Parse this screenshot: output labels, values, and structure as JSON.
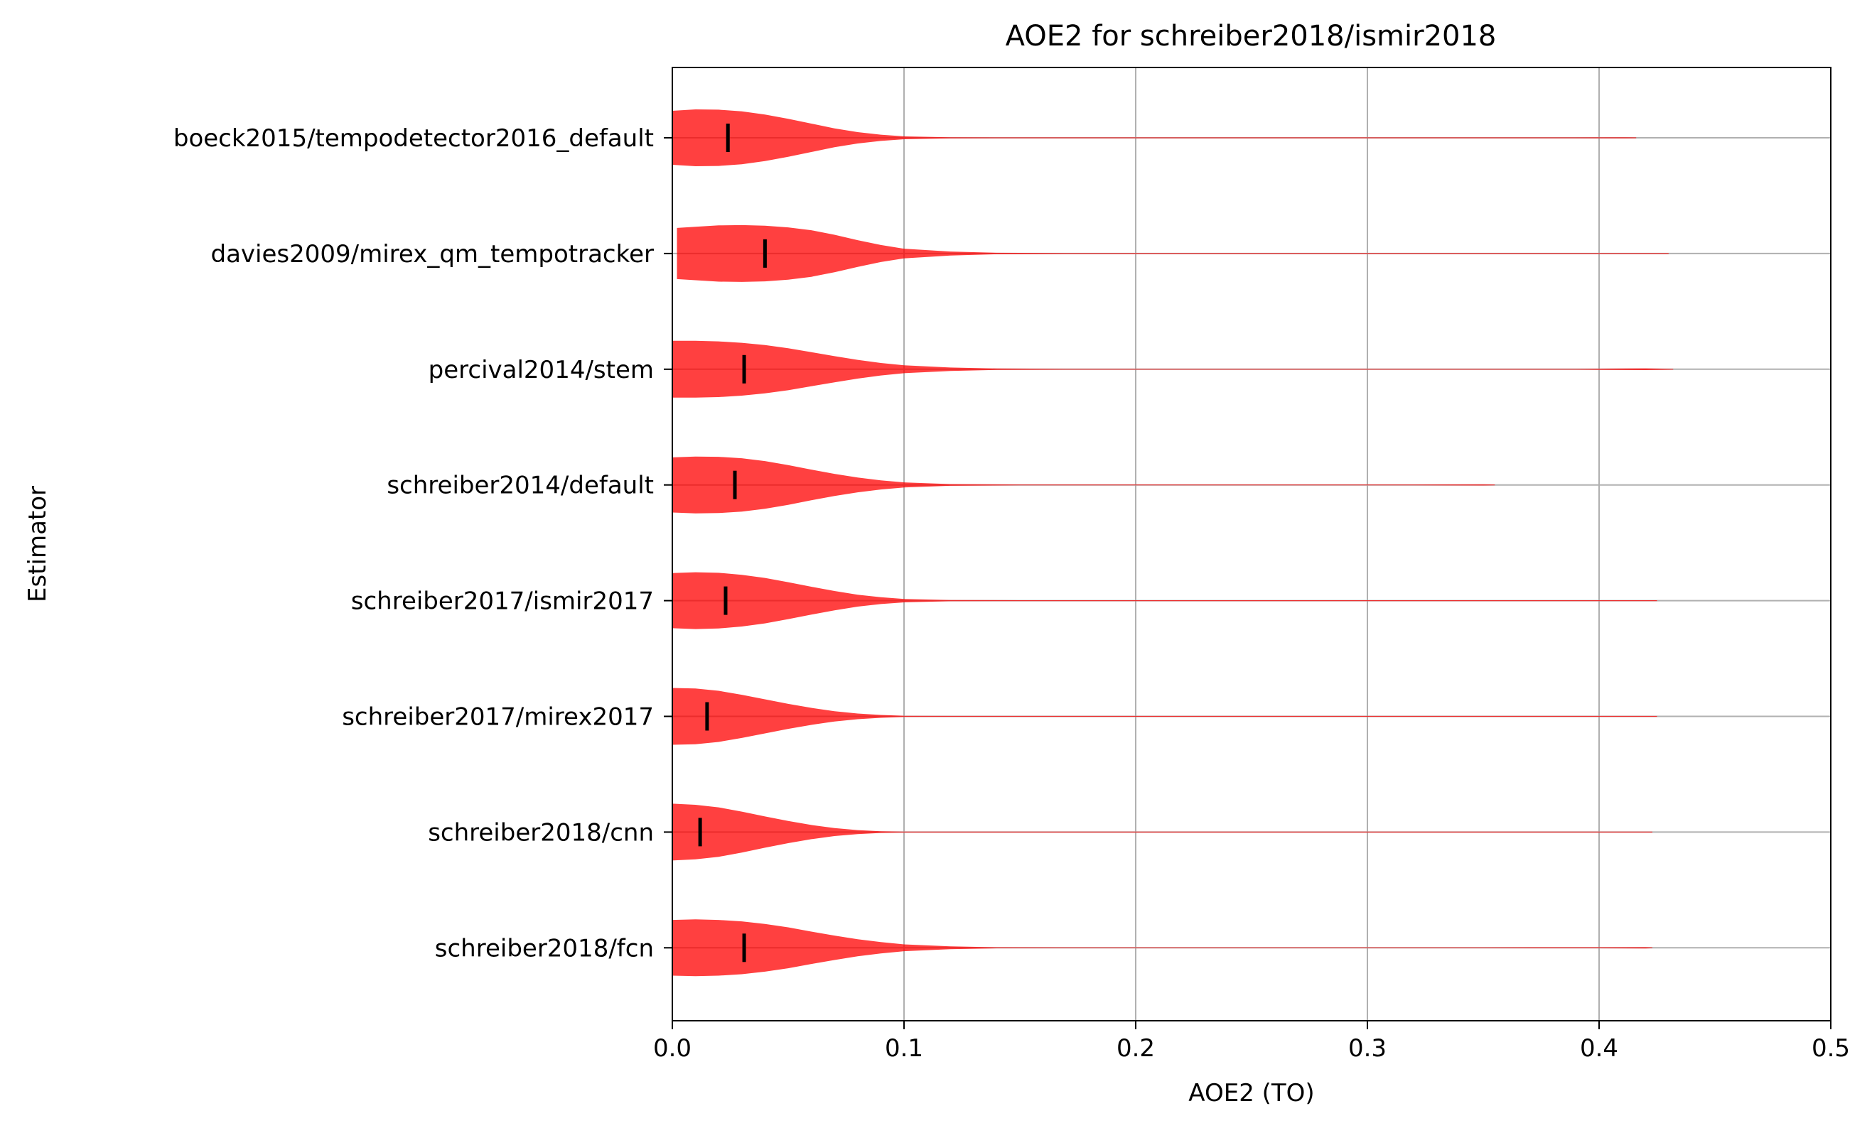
{
  "chart_data": {
    "type": "violin",
    "orientation": "horizontal",
    "title": "AOE2 for schreiber2018/ismir2018",
    "xlabel": "AOE2 (TO)",
    "ylabel": "Estimator",
    "xlim": [
      0.0,
      0.5
    ],
    "x_ticks": [
      "0.0",
      "0.1",
      "0.2",
      "0.3",
      "0.4",
      "0.5"
    ],
    "grid": true,
    "color": "#ff0000",
    "median_color": "#000000",
    "categories": [
      "boeck2015/tempodetector2016_default",
      "davies2009/mirex_qm_tempotracker",
      "percival2014/stem",
      "schreiber2014/default",
      "schreiber2017/ismir2017",
      "schreiber2017/mirex2017",
      "schreiber2018/cnn",
      "schreiber2018/fcn"
    ],
    "series": [
      {
        "min": 0.0,
        "max": 0.416,
        "median": 0.024,
        "density": [
          [
            0,
            0.95
          ],
          [
            0.01,
            1.0
          ],
          [
            0.02,
            0.99
          ],
          [
            0.03,
            0.93
          ],
          [
            0.04,
            0.82
          ],
          [
            0.05,
            0.67
          ],
          [
            0.06,
            0.5
          ],
          [
            0.07,
            0.33
          ],
          [
            0.08,
            0.2
          ],
          [
            0.09,
            0.11
          ],
          [
            0.1,
            0.05
          ],
          [
            0.12,
            0.02
          ],
          [
            0.14,
            0.008
          ],
          [
            0.2,
            0.0
          ],
          [
            0.3,
            0.0
          ],
          [
            0.37,
            0.0
          ],
          [
            0.39,
            0.015
          ],
          [
            0.41,
            0.02
          ],
          [
            0.416,
            0.0
          ]
        ]
      },
      {
        "min": 0.002,
        "max": 0.43,
        "median": 0.04,
        "density": [
          [
            0.002,
            0.9
          ],
          [
            0.01,
            0.94
          ],
          [
            0.02,
            0.99
          ],
          [
            0.03,
            1.0
          ],
          [
            0.04,
            0.98
          ],
          [
            0.05,
            0.92
          ],
          [
            0.06,
            0.82
          ],
          [
            0.07,
            0.66
          ],
          [
            0.08,
            0.47
          ],
          [
            0.09,
            0.3
          ],
          [
            0.1,
            0.17
          ],
          [
            0.12,
            0.07
          ],
          [
            0.14,
            0.025
          ],
          [
            0.17,
            0.008
          ],
          [
            0.25,
            0.0
          ],
          [
            0.3,
            0.0
          ],
          [
            0.38,
            0.0
          ],
          [
            0.42,
            0.006
          ],
          [
            0.43,
            0.0
          ]
        ]
      },
      {
        "min": 0.0,
        "max": 0.432,
        "median": 0.031,
        "density": [
          [
            0,
            1.0
          ],
          [
            0.01,
            1.0
          ],
          [
            0.02,
            0.98
          ],
          [
            0.03,
            0.93
          ],
          [
            0.04,
            0.85
          ],
          [
            0.05,
            0.74
          ],
          [
            0.06,
            0.6
          ],
          [
            0.07,
            0.46
          ],
          [
            0.08,
            0.33
          ],
          [
            0.09,
            0.22
          ],
          [
            0.1,
            0.14
          ],
          [
            0.12,
            0.06
          ],
          [
            0.14,
            0.025
          ],
          [
            0.17,
            0.008
          ],
          [
            0.25,
            0.0
          ],
          [
            0.3,
            0.0
          ],
          [
            0.35,
            0.0
          ],
          [
            0.39,
            0.012
          ],
          [
            0.42,
            0.03
          ],
          [
            0.432,
            0.0
          ]
        ]
      },
      {
        "min": 0.0,
        "max": 0.355,
        "median": 0.027,
        "density": [
          [
            0,
            0.97
          ],
          [
            0.01,
            1.0
          ],
          [
            0.02,
            0.99
          ],
          [
            0.03,
            0.94
          ],
          [
            0.04,
            0.84
          ],
          [
            0.05,
            0.7
          ],
          [
            0.06,
            0.54
          ],
          [
            0.07,
            0.39
          ],
          [
            0.08,
            0.26
          ],
          [
            0.09,
            0.16
          ],
          [
            0.1,
            0.09
          ],
          [
            0.12,
            0.03
          ],
          [
            0.15,
            0.006
          ],
          [
            0.2,
            0.0
          ],
          [
            0.28,
            0.0
          ],
          [
            0.32,
            0.01
          ],
          [
            0.35,
            0.02
          ],
          [
            0.355,
            0.0
          ]
        ]
      },
      {
        "min": 0.0,
        "max": 0.425,
        "median": 0.023,
        "density": [
          [
            0,
            0.97
          ],
          [
            0.01,
            1.0
          ],
          [
            0.02,
            0.98
          ],
          [
            0.03,
            0.91
          ],
          [
            0.04,
            0.8
          ],
          [
            0.05,
            0.65
          ],
          [
            0.06,
            0.49
          ],
          [
            0.07,
            0.34
          ],
          [
            0.08,
            0.21
          ],
          [
            0.09,
            0.12
          ],
          [
            0.1,
            0.06
          ],
          [
            0.12,
            0.02
          ],
          [
            0.15,
            0.005
          ],
          [
            0.2,
            0.0
          ],
          [
            0.35,
            0.0
          ],
          [
            0.39,
            0.008
          ],
          [
            0.42,
            0.01
          ],
          [
            0.425,
            0.0
          ]
        ]
      },
      {
        "min": 0.0,
        "max": 0.425,
        "median": 0.015,
        "density": [
          [
            0,
            1.0
          ],
          [
            0.01,
            0.98
          ],
          [
            0.02,
            0.9
          ],
          [
            0.03,
            0.76
          ],
          [
            0.04,
            0.6
          ],
          [
            0.05,
            0.44
          ],
          [
            0.06,
            0.3
          ],
          [
            0.07,
            0.18
          ],
          [
            0.08,
            0.1
          ],
          [
            0.09,
            0.05
          ],
          [
            0.1,
            0.02
          ],
          [
            0.12,
            0.005
          ],
          [
            0.15,
            0.0
          ],
          [
            0.38,
            0.0
          ],
          [
            0.42,
            0.006
          ],
          [
            0.425,
            0.0
          ]
        ]
      },
      {
        "min": 0.0,
        "max": 0.423,
        "median": 0.012,
        "density": [
          [
            0,
            1.0
          ],
          [
            0.01,
            0.96
          ],
          [
            0.02,
            0.87
          ],
          [
            0.03,
            0.72
          ],
          [
            0.04,
            0.55
          ],
          [
            0.05,
            0.39
          ],
          [
            0.06,
            0.25
          ],
          [
            0.07,
            0.14
          ],
          [
            0.08,
            0.07
          ],
          [
            0.09,
            0.03
          ],
          [
            0.1,
            0.012
          ],
          [
            0.12,
            0.004
          ],
          [
            0.15,
            0.0
          ],
          [
            0.38,
            0.0
          ],
          [
            0.42,
            0.005
          ],
          [
            0.423,
            0.0
          ]
        ]
      },
      {
        "min": 0.0,
        "max": 0.423,
        "median": 0.031,
        "density": [
          [
            0,
            0.98
          ],
          [
            0.01,
            1.0
          ],
          [
            0.02,
            0.98
          ],
          [
            0.03,
            0.93
          ],
          [
            0.04,
            0.84
          ],
          [
            0.05,
            0.72
          ],
          [
            0.06,
            0.57
          ],
          [
            0.07,
            0.43
          ],
          [
            0.08,
            0.3
          ],
          [
            0.09,
            0.2
          ],
          [
            0.1,
            0.12
          ],
          [
            0.12,
            0.05
          ],
          [
            0.14,
            0.018
          ],
          [
            0.17,
            0.005
          ],
          [
            0.25,
            0.0
          ],
          [
            0.3,
            0.0
          ],
          [
            0.35,
            0.006
          ],
          [
            0.4,
            0.018
          ],
          [
            0.42,
            0.022
          ],
          [
            0.423,
            0.0
          ]
        ]
      }
    ]
  }
}
